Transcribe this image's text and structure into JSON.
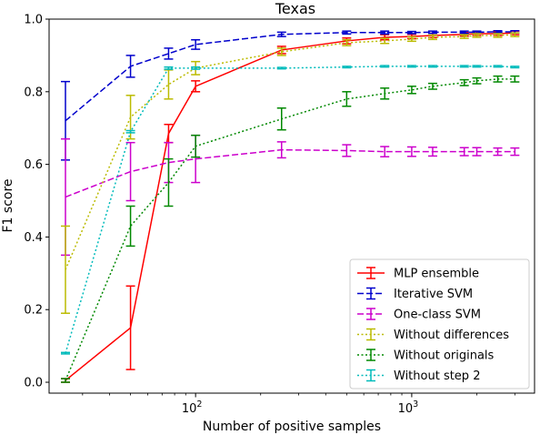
{
  "chart_data": {
    "type": "line",
    "title": "Texas",
    "xlabel": "Number of positive samples",
    "ylabel": "F1 score",
    "xscale": "log",
    "xlim": [
      21,
      3700
    ],
    "ylim": [
      -0.03,
      1.0
    ],
    "x_major_ticks": [
      {
        "value": 100,
        "base": "10",
        "exp": "2"
      },
      {
        "value": 1000,
        "base": "10",
        "exp": "3"
      }
    ],
    "y_ticks": [
      {
        "value": 0.0,
        "label": "0.0"
      },
      {
        "value": 0.2,
        "label": "0.2"
      },
      {
        "value": 0.4,
        "label": "0.4"
      },
      {
        "value": 0.6,
        "label": "0.6"
      },
      {
        "value": 0.8,
        "label": "0.8"
      },
      {
        "value": 1.0,
        "label": "1.0"
      }
    ],
    "grid": false,
    "legend_position": "bottom-right",
    "x": [
      25,
      50,
      75,
      100,
      250,
      500,
      750,
      1000,
      1250,
      1750,
      2000,
      2500,
      3000
    ],
    "series": [
      {
        "name": "MLP ensemble",
        "color": "#ff0000",
        "dash": "solid",
        "values": [
          0.005,
          0.15,
          0.685,
          0.815,
          0.915,
          0.94,
          0.95,
          0.952,
          0.955,
          0.958,
          0.96,
          0.96,
          0.962
        ],
        "errors": [
          0.005,
          0.115,
          0.025,
          0.015,
          0.01,
          0.008,
          0.007,
          0.006,
          0.006,
          0.005,
          0.005,
          0.005,
          0.005
        ]
      },
      {
        "name": "Iterative SVM",
        "color": "#0000cc",
        "dash": "dashed",
        "values": [
          0.72,
          0.87,
          0.905,
          0.93,
          0.958,
          0.963,
          0.963,
          0.963,
          0.964,
          0.964,
          0.964,
          0.965,
          0.965
        ],
        "errors": [
          0.108,
          0.03,
          0.015,
          0.013,
          0.006,
          0.004,
          0.004,
          0.003,
          0.003,
          0.003,
          0.003,
          0.003,
          0.003
        ]
      },
      {
        "name": "One-class SVM",
        "color": "#cc00cc",
        "dash": "dashed",
        "values": [
          0.51,
          0.58,
          0.605,
          0.615,
          0.64,
          0.638,
          0.635,
          0.635,
          0.635,
          0.635,
          0.635,
          0.635,
          0.635
        ],
        "errors": [
          0.16,
          0.08,
          0.055,
          0.065,
          0.022,
          0.016,
          0.014,
          0.013,
          0.012,
          0.011,
          0.011,
          0.01,
          0.01
        ]
      },
      {
        "name": "Without differences",
        "color": "#bbbb00",
        "dash": "dotted",
        "values": [
          0.31,
          0.73,
          0.82,
          0.865,
          0.91,
          0.935,
          0.94,
          0.945,
          0.95,
          0.952,
          0.955,
          0.955,
          0.957
        ],
        "errors": [
          0.12,
          0.06,
          0.04,
          0.018,
          0.01,
          0.008,
          0.007,
          0.006,
          0.006,
          0.005,
          0.005,
          0.005,
          0.005
        ]
      },
      {
        "name": "Without originals",
        "color": "#008800",
        "dash": "dotted",
        "values": [
          0.005,
          0.43,
          0.55,
          0.65,
          0.725,
          0.78,
          0.795,
          0.805,
          0.815,
          0.825,
          0.83,
          0.835,
          0.835
        ],
        "errors": [
          0.005,
          0.055,
          0.065,
          0.03,
          0.03,
          0.02,
          0.015,
          0.01,
          0.008,
          0.008,
          0.008,
          0.008,
          0.008
        ]
      },
      {
        "name": "Without step 2",
        "color": "#00bbbb",
        "dash": "dotted",
        "values": [
          0.08,
          0.69,
          0.865,
          0.865,
          0.865,
          0.868,
          0.87,
          0.87,
          0.87,
          0.87,
          0.87,
          0.87,
          0.868
        ],
        "errors": [
          0.002,
          0.003,
          0.003,
          0.003,
          0.002,
          0.002,
          0.002,
          0.002,
          0.002,
          0.002,
          0.002,
          0.002,
          0.002
        ]
      }
    ]
  }
}
